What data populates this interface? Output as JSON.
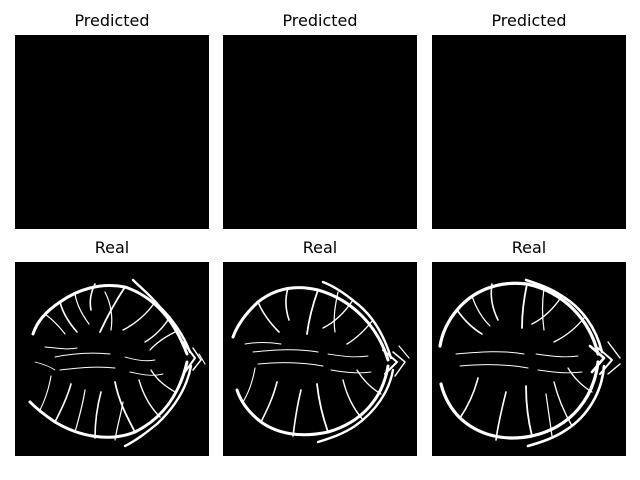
{
  "panels": [
    {
      "title": "Predicted",
      "kind": "predicted"
    },
    {
      "title": "Predicted",
      "kind": "predicted"
    },
    {
      "title": "Predicted",
      "kind": "predicted"
    },
    {
      "title": "Real",
      "kind": "real"
    },
    {
      "title": "Real",
      "kind": "real"
    },
    {
      "title": "Real",
      "kind": "real"
    }
  ],
  "colors": {
    "background": "#000000",
    "vessel": "#ffffff"
  }
}
